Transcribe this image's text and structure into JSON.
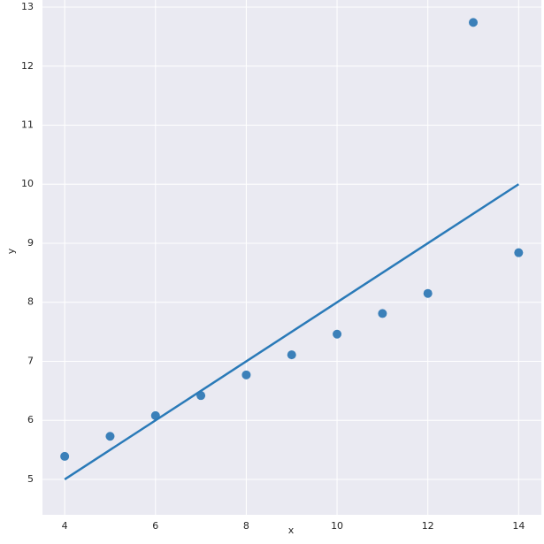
{
  "chart_data": {
    "type": "scatter",
    "xlabel": "x",
    "ylabel": "y",
    "xlim": [
      3.51,
      14.5
    ],
    "ylim": [
      4.4,
      13.12
    ],
    "xticks": [
      4,
      6,
      8,
      10,
      12,
      14
    ],
    "yticks": [
      5,
      6,
      7,
      8,
      9,
      10,
      11,
      12,
      13
    ],
    "grid": true,
    "series": [
      {
        "type": "scatter",
        "color": "#3b80b9",
        "x": [
          4,
          5,
          6,
          7,
          8,
          9,
          10,
          11,
          12,
          13,
          14
        ],
        "values": [
          5.39,
          5.73,
          6.08,
          6.42,
          6.77,
          7.11,
          7.46,
          7.81,
          8.15,
          12.74,
          8.84
        ]
      },
      {
        "type": "line",
        "color": "#2a7ab8",
        "x": [
          4,
          14
        ],
        "values": [
          5,
          10
        ]
      }
    ]
  }
}
